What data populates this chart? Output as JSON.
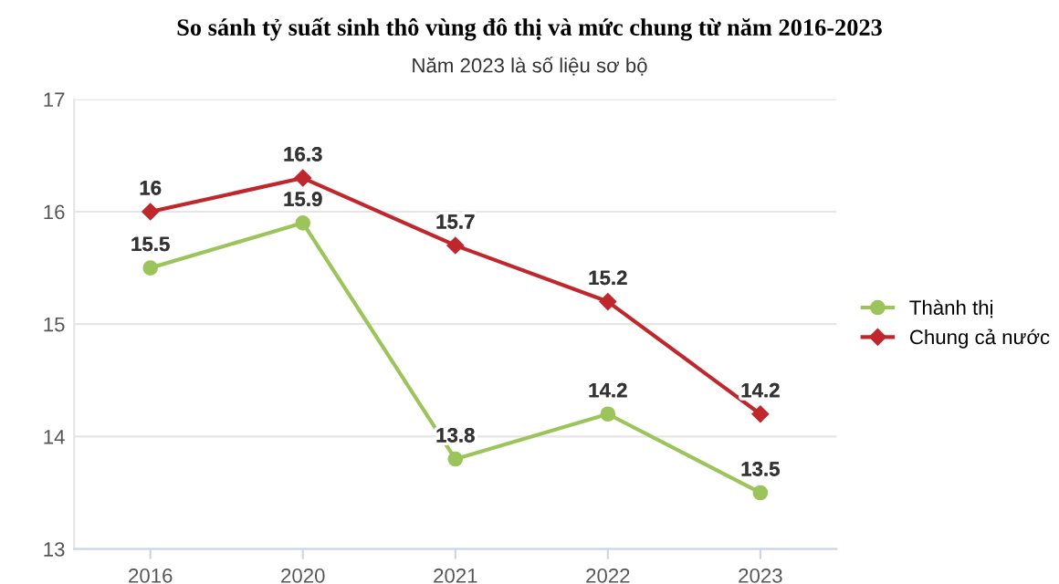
{
  "chart_data": {
    "type": "line",
    "title": "So sánh tỷ suất sinh thô vùng đô thị và mức chung từ năm 2016-2023",
    "subtitle": "Năm 2023 là số liệu sơ bộ",
    "categories": [
      "2016",
      "2020",
      "2021",
      "2022",
      "2023"
    ],
    "series": [
      {
        "name": "Thành thị",
        "color": "#9bc45a",
        "marker": "circle",
        "values": [
          15.5,
          15.9,
          13.8,
          14.2,
          13.5
        ]
      },
      {
        "name": "Chung cả nước",
        "color": "#c0272d",
        "marker": "diamond",
        "values": [
          16,
          16.3,
          15.7,
          15.2,
          14.2
        ]
      }
    ],
    "ylim": [
      13,
      17
    ],
    "yticks": [
      13,
      14,
      15,
      16,
      17
    ],
    "grid": "y",
    "legend": "right",
    "data_labels": true
  }
}
